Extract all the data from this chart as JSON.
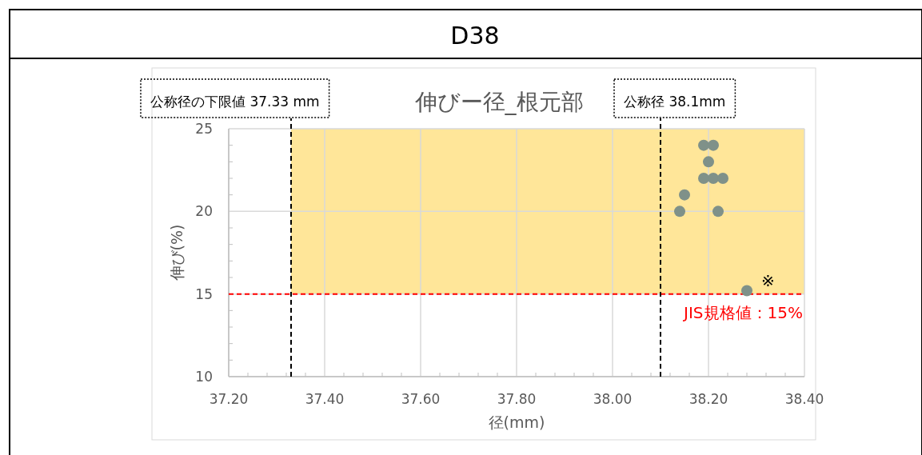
{
  "chart_data": {
    "type": "scatter",
    "title": "D38",
    "subtitle": "伸びー径_根元部",
    "xlabel": "径(mm)",
    "ylabel": "伸び(%)",
    "x": [
      38.19,
      38.21,
      38.2,
      38.19,
      38.21,
      38.23,
      38.15,
      38.14,
      38.22,
      38.28
    ],
    "series": [
      {
        "color": "#7f9189",
        "values": [
          24,
          24,
          23,
          22,
          22,
          22,
          21,
          20,
          20,
          15.2
        ]
      }
    ],
    "marker": "circle",
    "grid": true,
    "xlim": [
      37.2,
      38.4
    ],
    "xticks": [
      {
        "value": 37.2,
        "label": "37.20"
      },
      {
        "value": 37.4,
        "label": "37.40"
      },
      {
        "value": 37.6,
        "label": "37.60"
      },
      {
        "value": 37.8,
        "label": "37.80"
      },
      {
        "value": 38.0,
        "label": "38.00"
      },
      {
        "value": 38.2,
        "label": "38.20"
      },
      {
        "value": 38.4,
        "label": "38.40"
      }
    ],
    "ylim": [
      10,
      25
    ],
    "yticks": [
      10,
      15,
      20,
      25
    ],
    "ref_lines": [
      {
        "axis": "y",
        "value": 15,
        "label": "JIS規格値：15%",
        "color": "#ff0000",
        "line_style": "dashed"
      },
      {
        "axis": "x",
        "value": 37.33,
        "label": "公称径の下限値 37.33 mm",
        "color": "#000000",
        "line_style": "dashed"
      },
      {
        "axis": "x",
        "value": 38.1,
        "label": "公称径 38.1mm",
        "color": "#000000",
        "line_style": "dashed"
      }
    ],
    "bands": [
      {
        "axis": "y",
        "from": 15,
        "to": 25,
        "color": "#ffe699"
      }
    ],
    "annotations": [
      {
        "text": "※",
        "x": 38.28,
        "y": 15.2
      }
    ]
  }
}
